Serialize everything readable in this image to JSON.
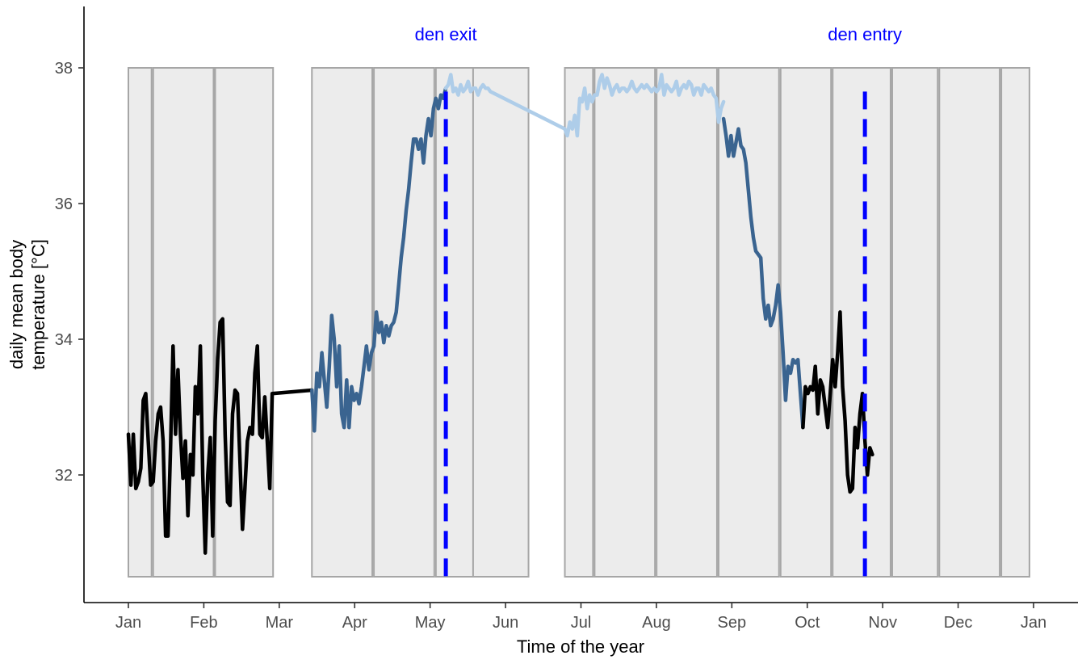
{
  "chart_data": {
    "type": "line",
    "xlabel": "Time of the year",
    "ylabel_lines": [
      "daily mean body",
      "temperature [°C]"
    ],
    "x_ticks": [
      "Jan",
      "Feb",
      "Mar",
      "Apr",
      "May",
      "Jun",
      "Jul",
      "Aug",
      "Sep",
      "Oct",
      "Nov",
      "Dec",
      "Jan"
    ],
    "x_domain_days": [
      0,
      365
    ],
    "y_ticks": [
      32,
      34,
      36,
      38
    ],
    "ylim": [
      30.5,
      38.9
    ],
    "grid": false,
    "shaded_windows": [
      {
        "start_day": 0,
        "end_day": 9
      },
      {
        "start_day": 10,
        "end_day": 34
      },
      {
        "start_day": 35,
        "end_day": 58
      },
      {
        "start_day": 74,
        "end_day": 98
      },
      {
        "start_day": 99,
        "end_day": 123
      },
      {
        "start_day": 124,
        "end_day": 139
      },
      {
        "start_day": 139,
        "end_day": 161
      },
      {
        "start_day": 176,
        "end_day": 187
      },
      {
        "start_day": 188,
        "end_day": 212
      },
      {
        "start_day": 213,
        "end_day": 237
      },
      {
        "start_day": 238,
        "end_day": 262
      },
      {
        "start_day": 263,
        "end_day": 283
      },
      {
        "start_day": 284,
        "end_day": 307
      },
      {
        "start_day": 308,
        "end_day": 326
      },
      {
        "start_day": 327,
        "end_day": 351
      },
      {
        "start_day": 352,
        "end_day": 363
      }
    ],
    "annotations": [
      {
        "label": "den exit",
        "x_day": 128,
        "color": "#0000ff"
      },
      {
        "label": "den entry",
        "x_day": 297,
        "color": "#0000ff"
      }
    ],
    "series": [
      {
        "color": "#000000",
        "points": [
          [
            0,
            32.6
          ],
          [
            1,
            31.85
          ],
          [
            2,
            32.6
          ],
          [
            3,
            31.8
          ],
          [
            4,
            31.9
          ],
          [
            5,
            32.1
          ],
          [
            6,
            33.1
          ],
          [
            7,
            33.2
          ],
          [
            8,
            32.5
          ],
          [
            9,
            31.85
          ],
          [
            10,
            31.9
          ],
          [
            11,
            32.5
          ],
          [
            12,
            32.9
          ],
          [
            13,
            33.0
          ],
          [
            14,
            32.5
          ],
          [
            15,
            31.1
          ],
          [
            16,
            31.1
          ],
          [
            17,
            32.4
          ],
          [
            18,
            33.9
          ],
          [
            19,
            32.6
          ],
          [
            20,
            33.55
          ],
          [
            21,
            32.6
          ],
          [
            22,
            31.95
          ],
          [
            23,
            32.5
          ],
          [
            24,
            31.4
          ],
          [
            25,
            32.3
          ],
          [
            26,
            32.0
          ],
          [
            27,
            33.3
          ],
          [
            28,
            32.9
          ],
          [
            29,
            33.9
          ],
          [
            30,
            32.0
          ],
          [
            31,
            30.85
          ],
          [
            32,
            32.0
          ],
          [
            33,
            32.55
          ],
          [
            34,
            31.1
          ],
          [
            35,
            32.8
          ],
          [
            36,
            33.7
          ],
          [
            37,
            34.25
          ],
          [
            38,
            34.3
          ],
          [
            39,
            32.6
          ],
          [
            40,
            31.6
          ],
          [
            41,
            31.55
          ],
          [
            42,
            32.9
          ],
          [
            43,
            33.25
          ],
          [
            44,
            33.2
          ],
          [
            45,
            32.2
          ],
          [
            46,
            31.2
          ],
          [
            47,
            31.8
          ],
          [
            48,
            32.5
          ],
          [
            49,
            32.7
          ],
          [
            50,
            32.6
          ],
          [
            51,
            33.5
          ],
          [
            52,
            33.9
          ],
          [
            53,
            32.6
          ],
          [
            54,
            32.55
          ],
          [
            55,
            33.15
          ],
          [
            56,
            32.5
          ],
          [
            57,
            31.8
          ],
          [
            58,
            33.2
          ],
          [
            74,
            33.25
          ]
        ]
      },
      {
        "color": "#3a6490",
        "points": [
          [
            74,
            33.25
          ],
          [
            75,
            32.65
          ],
          [
            76,
            33.5
          ],
          [
            77,
            33.3
          ],
          [
            78,
            33.8
          ],
          [
            79,
            33.4
          ],
          [
            80,
            33.0
          ],
          [
            81,
            33.6
          ],
          [
            82,
            34.35
          ],
          [
            83,
            34.0
          ],
          [
            84,
            33.3
          ],
          [
            85,
            33.9
          ],
          [
            86,
            32.9
          ],
          [
            87,
            32.7
          ],
          [
            88,
            33.4
          ],
          [
            89,
            32.7
          ],
          [
            90,
            33.3
          ],
          [
            91,
            33.1
          ],
          [
            92,
            33.2
          ],
          [
            93,
            33.05
          ],
          [
            94,
            33.3
          ],
          [
            95,
            33.6
          ],
          [
            96,
            33.9
          ],
          [
            97,
            33.55
          ],
          [
            98,
            33.8
          ],
          [
            99,
            33.9
          ],
          [
            100,
            34.4
          ],
          [
            101,
            34.1
          ],
          [
            102,
            34.25
          ],
          [
            103,
            33.95
          ],
          [
            104,
            34.2
          ],
          [
            105,
            34.05
          ],
          [
            106,
            34.2
          ],
          [
            107,
            34.25
          ],
          [
            108,
            34.4
          ],
          [
            109,
            34.8
          ],
          [
            110,
            35.2
          ],
          [
            111,
            35.5
          ],
          [
            112,
            35.9
          ],
          [
            113,
            36.2
          ],
          [
            114,
            36.6
          ],
          [
            115,
            36.95
          ],
          [
            116,
            36.95
          ],
          [
            117,
            36.8
          ],
          [
            118,
            36.95
          ],
          [
            119,
            36.6
          ],
          [
            120,
            37.0
          ],
          [
            121,
            37.25
          ],
          [
            122,
            37.0
          ],
          [
            123,
            37.4
          ],
          [
            124,
            37.55
          ],
          [
            125,
            37.4
          ],
          [
            126,
            37.6
          ],
          [
            127,
            37.55
          ],
          [
            128,
            37.7
          ]
        ]
      },
      {
        "color": "#aecde9",
        "points": [
          [
            128,
            37.7
          ],
          [
            129,
            37.75
          ],
          [
            130,
            37.9
          ],
          [
            131,
            37.65
          ],
          [
            132,
            37.7
          ],
          [
            133,
            37.6
          ],
          [
            134,
            37.75
          ],
          [
            135,
            37.65
          ],
          [
            136,
            37.7
          ],
          [
            137,
            37.8
          ],
          [
            138,
            37.65
          ],
          [
            139,
            37.7
          ],
          [
            140,
            37.7
          ],
          [
            141,
            37.6
          ],
          [
            142,
            37.7
          ],
          [
            143,
            37.75
          ],
          [
            144,
            37.7
          ],
          [
            145,
            37.7
          ],
          [
            146,
            37.65
          ],
          [
            176,
            37.1
          ],
          [
            177,
            37.0
          ],
          [
            178,
            37.2
          ],
          [
            179,
            37.1
          ],
          [
            180,
            37.3
          ],
          [
            181,
            37.0
          ],
          [
            182,
            37.55
          ],
          [
            183,
            37.5
          ],
          [
            184,
            37.7
          ],
          [
            185,
            37.4
          ],
          [
            186,
            37.6
          ],
          [
            187,
            37.5
          ],
          [
            188,
            37.6
          ],
          [
            189,
            37.6
          ],
          [
            190,
            37.8
          ],
          [
            191,
            37.9
          ],
          [
            192,
            37.7
          ],
          [
            193,
            37.85
          ],
          [
            194,
            37.75
          ],
          [
            195,
            37.6
          ],
          [
            196,
            37.7
          ],
          [
            197,
            37.75
          ],
          [
            198,
            37.65
          ],
          [
            199,
            37.7
          ],
          [
            200,
            37.7
          ],
          [
            201,
            37.65
          ],
          [
            202,
            37.7
          ],
          [
            203,
            37.8
          ],
          [
            204,
            37.7
          ],
          [
            205,
            37.65
          ],
          [
            206,
            37.7
          ],
          [
            207,
            37.75
          ],
          [
            208,
            37.7
          ],
          [
            209,
            37.75
          ],
          [
            210,
            37.7
          ],
          [
            211,
            37.65
          ],
          [
            212,
            37.7
          ],
          [
            213,
            37.65
          ],
          [
            214,
            37.7
          ],
          [
            215,
            37.9
          ],
          [
            216,
            37.6
          ],
          [
            217,
            37.75
          ],
          [
            218,
            37.7
          ],
          [
            219,
            37.65
          ],
          [
            220,
            37.7
          ],
          [
            221,
            37.8
          ],
          [
            222,
            37.6
          ],
          [
            223,
            37.7
          ],
          [
            224,
            37.75
          ],
          [
            225,
            37.7
          ],
          [
            226,
            37.8
          ],
          [
            227,
            37.75
          ],
          [
            228,
            37.6
          ],
          [
            229,
            37.7
          ],
          [
            230,
            37.7
          ],
          [
            231,
            37.6
          ],
          [
            232,
            37.75
          ],
          [
            233,
            37.7
          ],
          [
            234,
            37.65
          ],
          [
            235,
            37.7
          ],
          [
            236,
            37.6
          ],
          [
            237,
            37.55
          ],
          [
            238,
            37.2
          ],
          [
            239,
            37.4
          ],
          [
            240,
            37.5
          ]
        ]
      },
      {
        "color": "#3a6490",
        "points": [
          [
            240,
            37.25
          ],
          [
            241,
            37.0
          ],
          [
            242,
            36.7
          ],
          [
            243,
            37.0
          ],
          [
            244,
            36.7
          ],
          [
            245,
            36.9
          ],
          [
            246,
            37.1
          ],
          [
            247,
            36.85
          ],
          [
            248,
            36.8
          ],
          [
            249,
            36.6
          ],
          [
            250,
            36.2
          ],
          [
            251,
            35.8
          ],
          [
            252,
            35.5
          ],
          [
            253,
            35.3
          ],
          [
            254,
            35.25
          ],
          [
            255,
            35.2
          ],
          [
            256,
            34.6
          ],
          [
            257,
            34.3
          ],
          [
            258,
            34.5
          ],
          [
            259,
            34.2
          ],
          [
            260,
            34.3
          ],
          [
            261,
            34.5
          ],
          [
            262,
            34.8
          ],
          [
            263,
            34.4
          ],
          [
            264,
            33.8
          ],
          [
            265,
            33.1
          ],
          [
            266,
            33.6
          ],
          [
            267,
            33.5
          ],
          [
            268,
            33.7
          ],
          [
            269,
            33.65
          ],
          [
            270,
            33.7
          ],
          [
            271,
            33.2
          ],
          [
            272,
            32.7
          ]
        ]
      },
      {
        "color": "#000000",
        "points": [
          [
            272,
            32.7
          ],
          [
            273,
            33.3
          ],
          [
            274,
            33.2
          ],
          [
            275,
            33.3
          ],
          [
            276,
            33.25
          ],
          [
            277,
            33.6
          ],
          [
            278,
            32.9
          ],
          [
            279,
            33.4
          ],
          [
            280,
            33.3
          ],
          [
            281,
            33.0
          ],
          [
            282,
            32.7
          ],
          [
            283,
            33.2
          ],
          [
            284,
            33.7
          ],
          [
            285,
            33.3
          ],
          [
            286,
            33.8
          ],
          [
            287,
            34.4
          ],
          [
            288,
            33.3
          ],
          [
            289,
            32.8
          ],
          [
            290,
            32.0
          ],
          [
            291,
            31.75
          ],
          [
            292,
            31.8
          ],
          [
            293,
            32.7
          ],
          [
            294,
            32.4
          ],
          [
            295,
            32.9
          ],
          [
            296,
            33.2
          ],
          [
            297,
            32.5
          ],
          [
            298,
            32.0
          ],
          [
            299,
            32.4
          ],
          [
            300,
            32.3
          ]
        ]
      }
    ]
  }
}
